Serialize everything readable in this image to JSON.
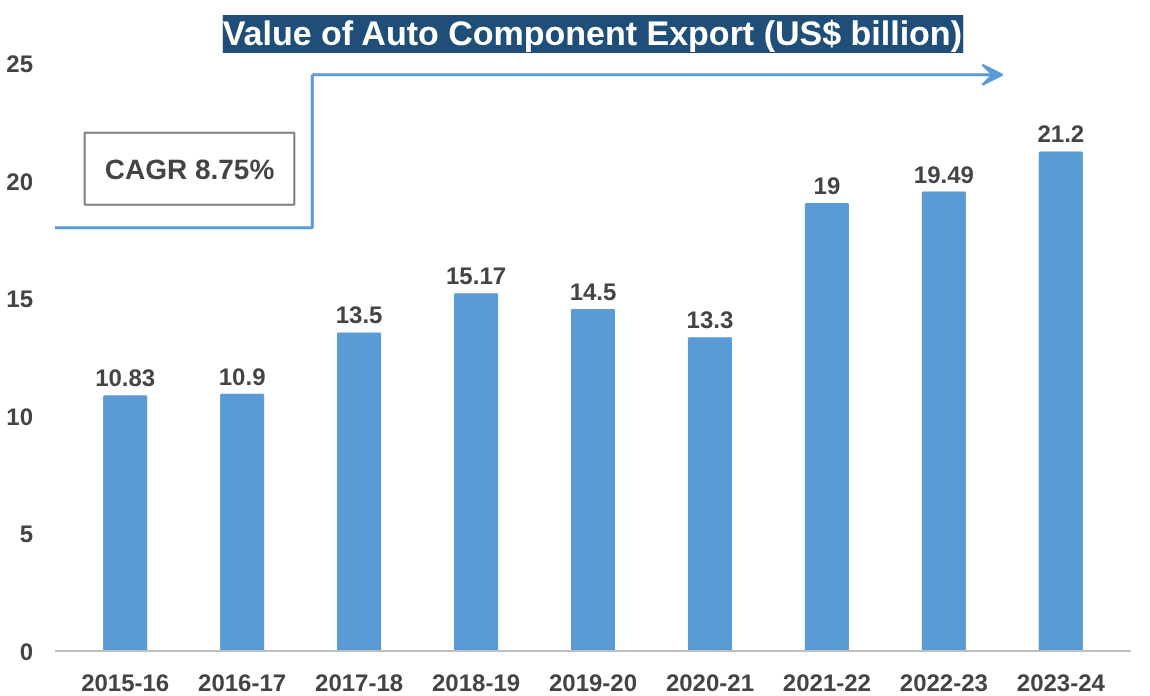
{
  "chart_data": {
    "type": "bar",
    "title": "Value of Auto Component Export (US$ billion)",
    "categories": [
      "2015-16",
      "2016-17",
      "2017-18",
      "2018-19",
      "2019-20",
      "2020-21",
      "2021-22",
      "2022-23",
      "2023-24"
    ],
    "values": [
      10.83,
      10.9,
      13.5,
      15.17,
      14.5,
      13.3,
      19,
      19.49,
      21.2
    ],
    "color": "#5b9bd5",
    "data_labels": true,
    "ylim": [
      0,
      25
    ],
    "yticks": [
      0,
      5,
      10,
      15,
      20,
      25
    ],
    "grid": false,
    "annotations": [
      "CAGR 8.75%"
    ]
  }
}
